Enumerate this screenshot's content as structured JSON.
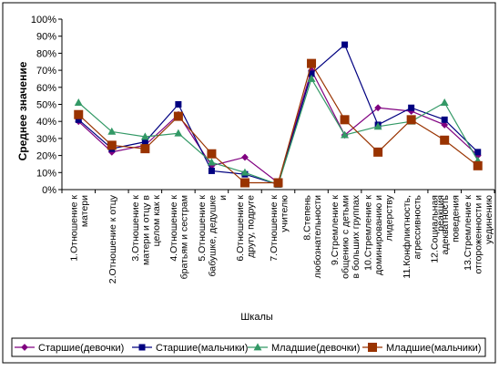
{
  "chart_data": {
    "type": "line",
    "title": "",
    "xlabel": "Шкалы",
    "ylabel": "Среднее значение",
    "ylim": [
      0,
      100
    ],
    "y_ticks": [
      "0%",
      "10%",
      "20%",
      "30%",
      "40%",
      "50%",
      "60%",
      "70%",
      "80%",
      "90%",
      "100%"
    ],
    "grid": false,
    "legend_position": "bottom",
    "categories": [
      [
        "1.Отношение к",
        "матери"
      ],
      [
        "2.Отношение к отцу"
      ],
      [
        "3.Отношение к",
        "матери и отцу в",
        "целом как к"
      ],
      [
        "4.Отношение к",
        "братьям и сестрам"
      ],
      [
        "5.Отношение к",
        "бабушке, дедушке",
        "и"
      ],
      [
        "6.Отношение к",
        "другу, подруге"
      ],
      [
        "7.Отношение к",
        "учителю"
      ],
      [
        "8.Степень",
        "любознательности"
      ],
      [
        "9.Стремление к",
        "общению с детьми",
        "в больших группах"
      ],
      [
        "10.Стремление к",
        "доминированию и",
        "лидерству"
      ],
      [
        "11.Конфликтность,",
        "агрессивность"
      ],
      [
        "12.Социальная",
        "адекватность",
        "поведения"
      ],
      [
        "13.Стремление к",
        "отгороженности и",
        "уединению"
      ]
    ],
    "series": [
      {
        "name": "Старшие(девочки)",
        "color": "#800080",
        "marker": "diamond",
        "values": [
          40,
          22,
          26,
          44,
          14,
          19,
          4,
          70,
          32,
          48,
          46,
          38,
          20
        ]
      },
      {
        "name": "Старшие(мальчики)",
        "color": "#000080",
        "marker": "square",
        "values": [
          41,
          24,
          28,
          50,
          11,
          9,
          3,
          68,
          85,
          38,
          48,
          41,
          22
        ]
      },
      {
        "name": "Младшие(девочки)",
        "color": "#339966",
        "marker": "triangle",
        "values": [
          51,
          34,
          31,
          33,
          16,
          10,
          3,
          65,
          32,
          37,
          40,
          51,
          17
        ]
      },
      {
        "name": "Младшие(мальчики)",
        "color": "#993300",
        "marker": "square",
        "values": [
          44,
          26,
          24,
          43,
          21,
          4,
          4,
          74,
          41,
          22,
          41,
          29,
          14
        ]
      }
    ],
    "extra_annotations": [
      "реакция"
    ]
  }
}
